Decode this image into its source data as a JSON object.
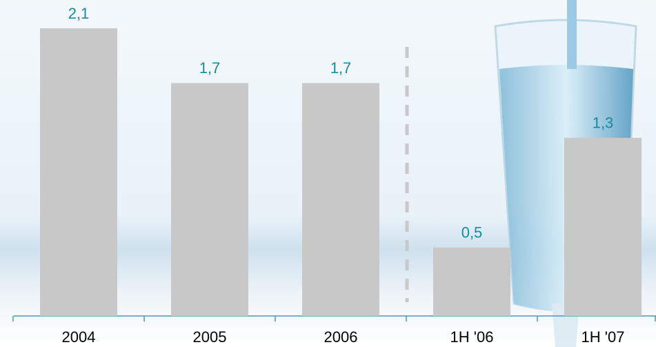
{
  "chart_data": {
    "type": "bar",
    "categories": [
      "2004",
      "2005",
      "2006",
      "1H '06",
      "1H '07"
    ],
    "values": [
      2.1,
      1.7,
      1.7,
      0.5,
      1.3
    ],
    "value_labels": [
      "2,1",
      "1,7",
      "1,7",
      "0,5",
      "1,3"
    ],
    "color": "#c8c8c8",
    "label_color": "#1a8aa0"
  }
}
